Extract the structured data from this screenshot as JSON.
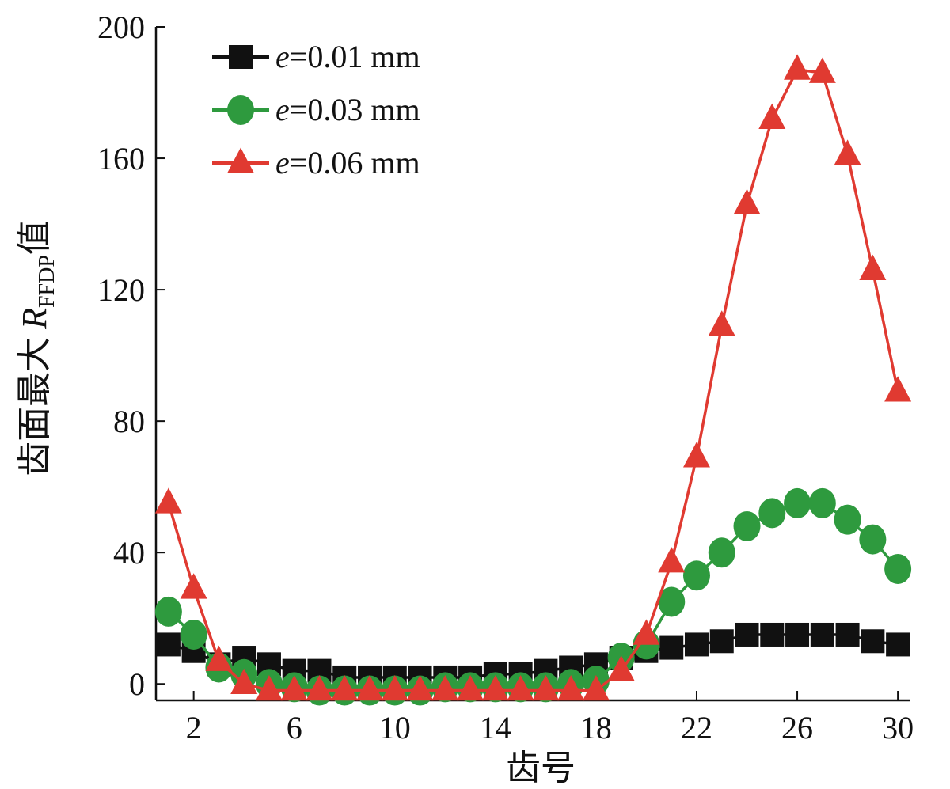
{
  "chart_data": {
    "type": "line",
    "xlabel": "齿号",
    "ylabel": {
      "prefix": "齿面最大",
      "symbol": "R",
      "subscript": "FFDP",
      "suffix": "值"
    },
    "xlim": [
      1,
      30
    ],
    "ylim": [
      0,
      200
    ],
    "xticks": [
      2,
      6,
      10,
      14,
      18,
      22,
      26,
      30
    ],
    "yticks": [
      0,
      40,
      80,
      120,
      160,
      200
    ],
    "grid": false,
    "legend_position": "top-left",
    "x": [
      1,
      2,
      3,
      4,
      5,
      6,
      7,
      8,
      9,
      10,
      11,
      12,
      13,
      14,
      15,
      16,
      17,
      18,
      19,
      20,
      21,
      22,
      23,
      24,
      25,
      26,
      27,
      28,
      29,
      30
    ],
    "series": [
      {
        "name_var": "e",
        "name_rest": "=0.01 mm",
        "marker": "square",
        "color": "#111111",
        "values": [
          12,
          10,
          6,
          8,
          6,
          4,
          4,
          2,
          2,
          2,
          2,
          2,
          2,
          3,
          3,
          4,
          5,
          6,
          8,
          10,
          11,
          12,
          13,
          15,
          15,
          15,
          15,
          15,
          13,
          12
        ]
      },
      {
        "name_var": "e",
        "name_rest": "=0.03 mm",
        "marker": "circle",
        "color": "#2e9a3e",
        "values": [
          22,
          15,
          5,
          3,
          0,
          -1,
          -2,
          -2,
          -2,
          -2,
          -2,
          -1,
          -1,
          -1,
          -1,
          -1,
          0,
          1,
          8,
          12,
          25,
          33,
          40,
          48,
          52,
          55,
          55,
          50,
          44,
          35
        ]
      },
      {
        "name_var": "e",
        "name_rest": "=0.06 mm",
        "marker": "triangle",
        "color": "#e03a31",
        "values": [
          55,
          29,
          7,
          0,
          -2,
          -2,
          -2,
          -2,
          -2,
          -2,
          -2,
          -2,
          -2,
          -2,
          -2,
          -2,
          -2,
          -2,
          4,
          15,
          37,
          69,
          109,
          146,
          172,
          187,
          186,
          161,
          126,
          89
        ]
      }
    ]
  }
}
